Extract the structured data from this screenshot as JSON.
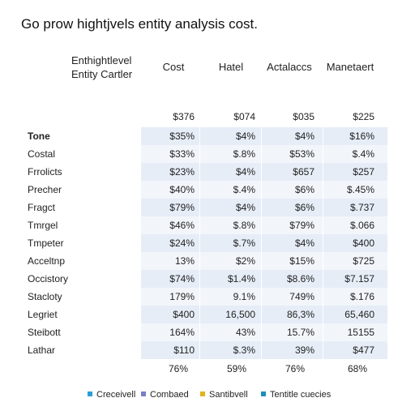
{
  "title": "Go prow hightjvels entity analysis cost.",
  "row_header": [
    "Enthightlevel",
    "Entity Cartler"
  ],
  "columns": [
    "Cost",
    "Hatel",
    "Actalaccs",
    "Manetaert"
  ],
  "totals": [
    "$376",
    "$074",
    "$035",
    "$225"
  ],
  "rows": [
    {
      "label": "Tone",
      "values": [
        "$35%",
        "$4%",
        "$4%",
        "$16%"
      ]
    },
    {
      "label": "Costal",
      "values": [
        "$33%",
        "$.8%",
        "$53%",
        "$.4%"
      ]
    },
    {
      "label": "Frrolicts",
      "values": [
        "$23%",
        "$4%",
        "$657",
        "$257"
      ]
    },
    {
      "label": "Precher",
      "values": [
        "$40%",
        "$.4%",
        "$6%",
        "$.45%"
      ]
    },
    {
      "label": "Fragct",
      "values": [
        "$79%",
        "$4%",
        "$6%",
        "$.737"
      ]
    },
    {
      "label": "Tmrgel",
      "values": [
        "$46%",
        "$.8%",
        "$79%",
        "$.066"
      ]
    },
    {
      "label": "Tmpeter",
      "values": [
        "$24%",
        "$.7%",
        "$4%",
        "$400"
      ]
    },
    {
      "label": "Acceltnp",
      "values": [
        "13%",
        "$2%",
        "$15%",
        "$725"
      ]
    },
    {
      "label": "Occistory",
      "values": [
        "$74%",
        "$1.4%",
        "$8.6%",
        "$7.157"
      ]
    },
    {
      "label": "Stacloty",
      "values": [
        "179%",
        "9.1%",
        "749%",
        "$.176"
      ]
    },
    {
      "label": "Legriet",
      "values": [
        "$400",
        "16,500",
        "86,3%",
        "65,460"
      ]
    },
    {
      "label": "Steibott",
      "values": [
        "164%",
        "43%",
        "15.7%",
        "15155"
      ]
    },
    {
      "label": "Lathar",
      "values": [
        "$110",
        "$.3%",
        "39%",
        "$477"
      ]
    }
  ],
  "footers": [
    "76%",
    "59%",
    "76%",
    "68%"
  ],
  "legend": [
    {
      "label": "Creceivell",
      "color": "#2a9fd6"
    },
    {
      "label": "Combaed",
      "color": "#7a7fc4"
    },
    {
      "label": "Santibvell",
      "color": "#e3b21f"
    },
    {
      "label": "Tentitle cuecies",
      "color": "#1e8fb5"
    }
  ]
}
